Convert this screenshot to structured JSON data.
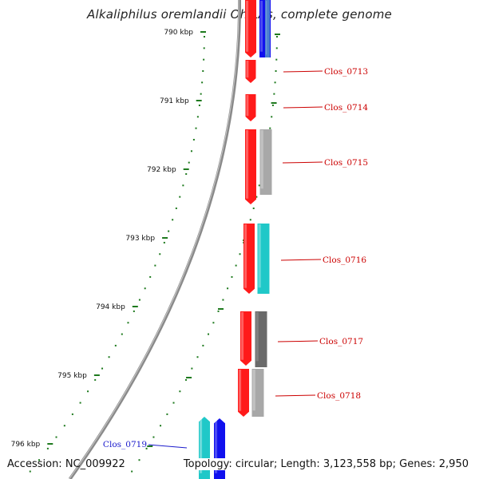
{
  "title": "Alkaliphilus oremlandii OhILAs, complete genome",
  "footer": {
    "accession": "Accession: NC_009922",
    "stats": "Topology: circular; Length: 3,123,558 bp; Genes: 2,950"
  },
  "colors": {
    "tick": "#1e7a1e",
    "backbone": "#8a8a8a",
    "label_red": "#cc0000",
    "label_blue": "#1a1acc",
    "forward_cds": "#ff1a1a",
    "reverse_blue": "#1010ee",
    "reverse_cyan": "#20c8c8",
    "reverse_gray": "#a8a8a8",
    "reverse_dark_gray": "#6a6a6a"
  },
  "ticks": [
    "790 kbp",
    "791 kbp",
    "792 kbp",
    "793 kbp",
    "794 kbp",
    "795 kbp",
    "796 kbp"
  ],
  "genes": [
    {
      "label": "Clos_0713",
      "color": "red"
    },
    {
      "label": "Clos_0714",
      "color": "red"
    },
    {
      "label": "Clos_0715",
      "color": "red"
    },
    {
      "label": "Clos_0716",
      "color": "red"
    },
    {
      "label": "Clos_0717",
      "color": "red"
    },
    {
      "label": "Clos_0718",
      "color": "red"
    },
    {
      "label": "Clos_0719",
      "color": "blue"
    }
  ]
}
